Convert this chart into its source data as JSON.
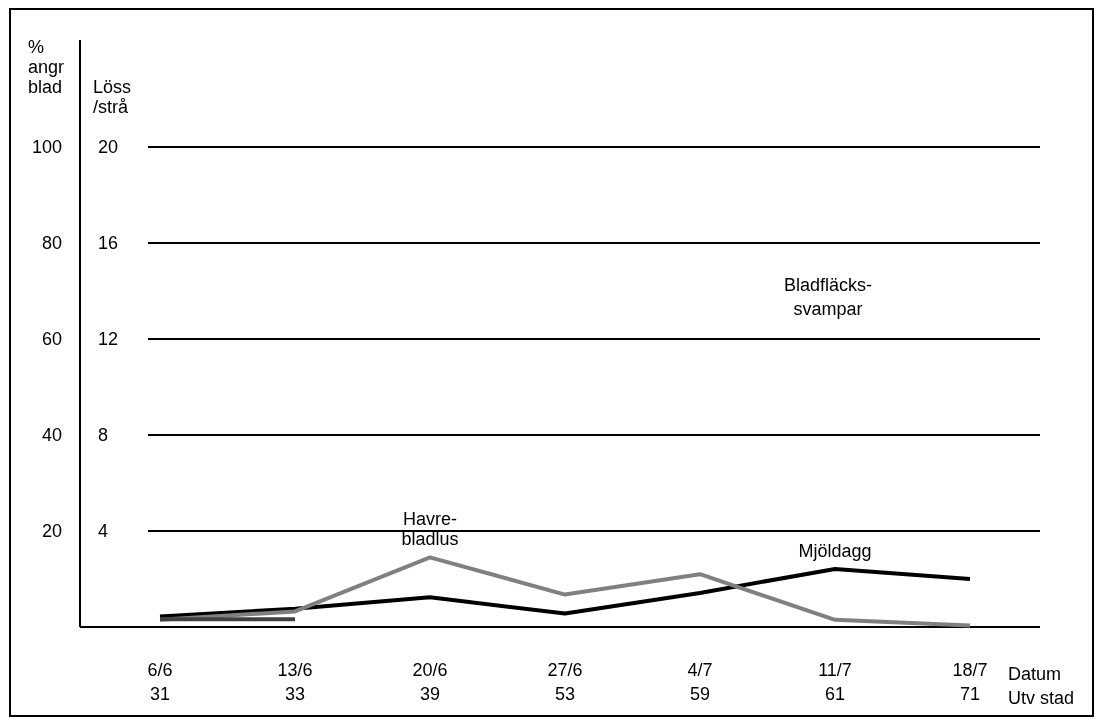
{
  "chart_data": {
    "type": "line",
    "categories": [
      "6/6\n31",
      "13/6\n33",
      "20/6\n39",
      "27/6\n53",
      "4/7\n59",
      "11/7\n61",
      "18/7\n71"
    ],
    "xlabel": "Datum\nUtv stad",
    "ylabel": "%\nangr\nblad",
    "y2label": "Löss\n/strå",
    "ylim": [
      0,
      100
    ],
    "yticks": [
      20,
      40,
      60,
      80,
      100
    ],
    "y2lim": [
      0,
      20
    ],
    "y2ticks": [
      4,
      8,
      12,
      16,
      20
    ],
    "grid": "y",
    "line_style": "solid",
    "marker": "none",
    "annotations": [
      "Bladfläcks-\nsvampar"
    ],
    "series": [
      {
        "name": "Mjöldagg",
        "color": "#000000",
        "values": [
          2.2,
          3.8,
          6.2,
          2.8,
          7.1,
          12.1,
          10
        ]
      },
      {
        "name": "Havre-\nbladlus",
        "color": "#808080",
        "axis": "y2",
        "values": [
          0.3,
          0.65,
          2.9,
          1.35,
          2.2,
          0.3,
          0.06
        ]
      },
      {
        "color": "#404040",
        "values": [
          1.6,
          1.6,
          null,
          null,
          null,
          null,
          null
        ]
      }
    ]
  }
}
